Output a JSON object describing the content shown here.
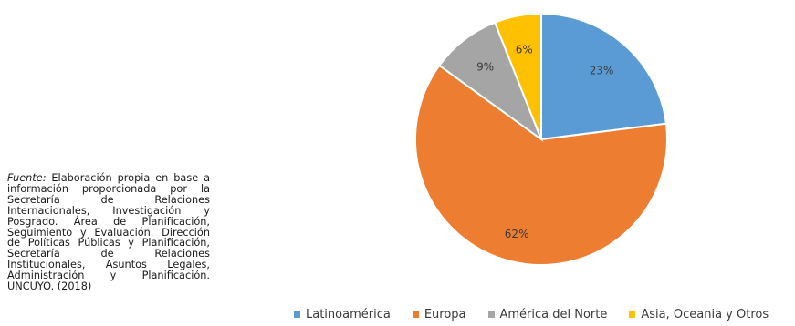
{
  "source_note": {
    "lead": "Fuente:",
    "text": "Elaboración propia en base a información proporcionada por la Secretaría de Relaciones Internacionales, Investigación y Posgrado. Área de Planificación, Seguimiento y Evaluación. Dirección de Políticas Públicas y Planificación, Secretaría de Relaciones Institucionales, Asuntos Legales, Administración y Planificación. UNCUYO. (2018)"
  },
  "chart_data": {
    "type": "pie",
    "title": "",
    "legend_position": "bottom",
    "slices": [
      {
        "label": "Latinoamérica",
        "value": 23,
        "display": "23%",
        "color": "#5b9bd5"
      },
      {
        "label": "Europa",
        "value": 62,
        "display": "62%",
        "color": "#ed7d31"
      },
      {
        "label": "América del Norte",
        "value": 9,
        "display": "9%",
        "color": "#a5a5a5"
      },
      {
        "label": "Asia, Oceania y Otros",
        "value": 6,
        "display": "6%",
        "color": "#ffc000"
      }
    ]
  }
}
